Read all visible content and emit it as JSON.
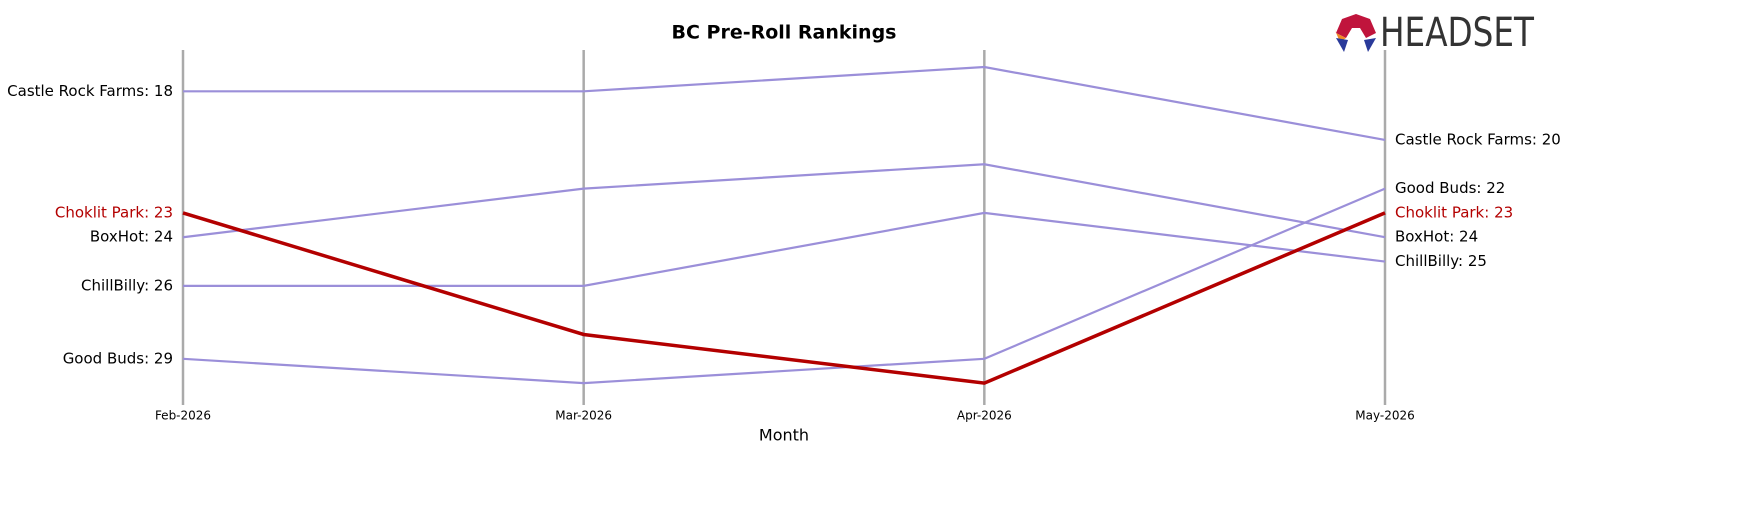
{
  "logo": "HEADSET",
  "chart_data": {
    "type": "bump",
    "title": "BC Pre-Roll Rankings",
    "x_label": "Month",
    "categories": [
      "Feb-2026",
      "Mar-2026",
      "Apr-2026",
      "May-2026"
    ],
    "ylim": [
      30.9,
      16.3
    ],
    "grid": true,
    "series": [
      {
        "color": "#9b8fd9",
        "values": [
          18,
          18,
          17,
          20
        ],
        "value_labels": [
          "Castle Rock Farms: 18",
          null,
          null,
          "Castle Rock Farms: 20"
        ]
      },
      {
        "color": "#9b8fd9",
        "values": [
          24,
          22,
          21,
          24
        ],
        "value_labels": [
          "BoxHot: 24",
          null,
          null,
          "BoxHot: 24"
        ]
      },
      {
        "color": "#9b8fd9",
        "values": [
          26,
          26,
          23,
          25
        ],
        "value_labels": [
          "ChillBilly: 26",
          null,
          null,
          "ChillBilly: 25"
        ]
      },
      {
        "color": "#9b8fd9",
        "values": [
          29,
          30,
          29,
          22
        ],
        "value_labels": [
          "Good Buds: 29",
          null,
          null,
          "Good Buds: 22"
        ]
      },
      {
        "color": "#b30000",
        "highlight": true,
        "values": [
          23,
          28,
          30,
          23
        ],
        "value_labels": [
          "Choklit Park: 23",
          null,
          null,
          "Choklit Park: 23"
        ]
      }
    ]
  }
}
